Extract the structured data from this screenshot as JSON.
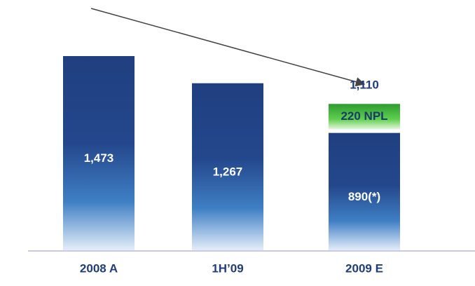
{
  "chart_data": {
    "type": "stacked_bar",
    "categories": [
      "2008 A",
      "1H’09",
      "2009 E"
    ],
    "series": [
      {
        "color": "#1f3f80",
        "values": [
          1473,
          1267,
          890
        ],
        "value_labels": [
          "1,473",
          "1,267",
          "890(*)"
        ]
      },
      {
        "color": "#3aa83a",
        "values": [
          null,
          null,
          220
        ],
        "value_labels": [
          null,
          null,
          "220 NPL"
        ]
      }
    ],
    "totals": [
      null,
      null,
      1110
    ],
    "total_labels": [
      null,
      null,
      "1,110"
    ]
  }
}
